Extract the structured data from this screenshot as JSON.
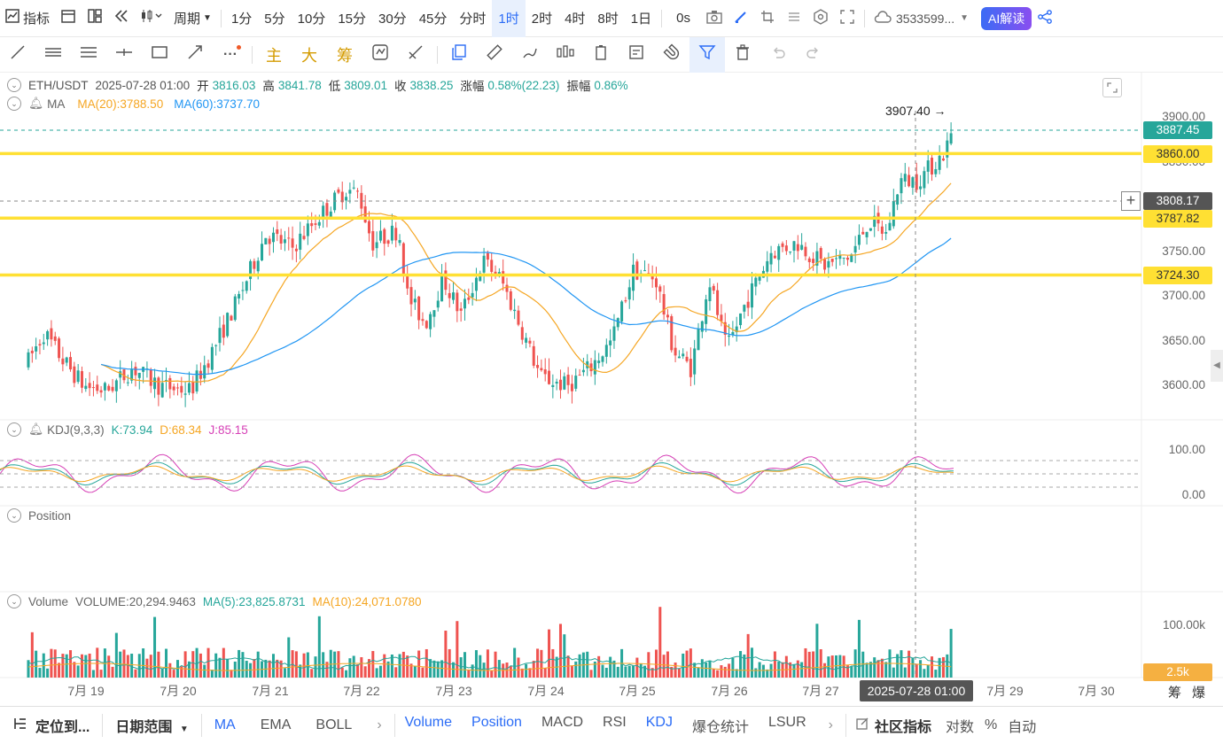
{
  "topbar": {
    "indicators_label": "指标",
    "period_label": "周期",
    "intervals": [
      "1分",
      "5分",
      "10分",
      "15分",
      "30分",
      "45分",
      "分时",
      "1时",
      "2时",
      "4时",
      "8时",
      "1日"
    ],
    "active_interval": "1时",
    "speed_label": "0s",
    "account_label": "3533599...",
    "ai_label": "AI解读"
  },
  "toolbar": {
    "cn_tools": [
      "主",
      "大",
      "筹"
    ]
  },
  "ohlc": {
    "pair": "ETH/USDT",
    "time": "2025-07-28 01:00",
    "open_label": "开",
    "open": "3816.03",
    "high_label": "高",
    "high": "3841.78",
    "low_label": "低",
    "low": "3809.01",
    "close_label": "收",
    "close": "3838.25",
    "change_label": "涨幅",
    "change": "0.58%(22.23)",
    "amp_label": "振幅",
    "amp": "0.86%"
  },
  "ma_legend": {
    "name": "MA",
    "ma20": "MA(20):3788.50",
    "ma60": "MA(60):3737.70"
  },
  "kdj_legend": {
    "name": "KDJ(9,3,3)",
    "k": "K:73.94",
    "d": "D:68.34",
    "j": "J:85.15"
  },
  "position_legend": {
    "name": "Position"
  },
  "volume_legend": {
    "name": "Volume",
    "vol": "VOLUME:20,294.9463",
    "ma5": "MA(5):23,825.8731",
    "ma10": "MA(10):24,071.0780"
  },
  "price_axis": [
    "3900.00",
    "3850.00",
    "3750.00",
    "3700.00",
    "3650.00",
    "3600.00"
  ],
  "kdj_axis": [
    "100.00",
    "0.00"
  ],
  "volume_axis": [
    "100.00k"
  ],
  "volume_tag": "2.5k",
  "high_marker": "3907.40",
  "price_tags": {
    "last": "3887.45",
    "line1": "3860.00",
    "cursor": "3808.17",
    "line2": "3787.82",
    "line3": "3724.30"
  },
  "dates": [
    "7月 19",
    "7月 20",
    "7月 21",
    "7月 22",
    "7月 23",
    "7月 24",
    "7月 25",
    "7月 26",
    "7月 27",
    "7月 29",
    "7月 30"
  ],
  "cursor_date": "2025-07-28 01:00",
  "corner_labels": [
    "筹",
    "爆"
  ],
  "bottombar": {
    "locate": "定位到...",
    "date_range": "日期范围",
    "main_indicators": [
      "MA",
      "EMA",
      "BOLL"
    ],
    "sub_indicators": [
      "Volume",
      "Position",
      "MACD",
      "RSI",
      "KDJ",
      "爆仓统计",
      "LSUR"
    ],
    "community": "社区指标",
    "log": "对数",
    "percent": "%",
    "auto": "自动"
  },
  "colors": {
    "up": "#26a69a",
    "down": "#ef5350",
    "ma20": "#f5a623",
    "ma60": "#2196f3",
    "hline": "#ffe033",
    "accent": "#2b6cf6"
  }
}
